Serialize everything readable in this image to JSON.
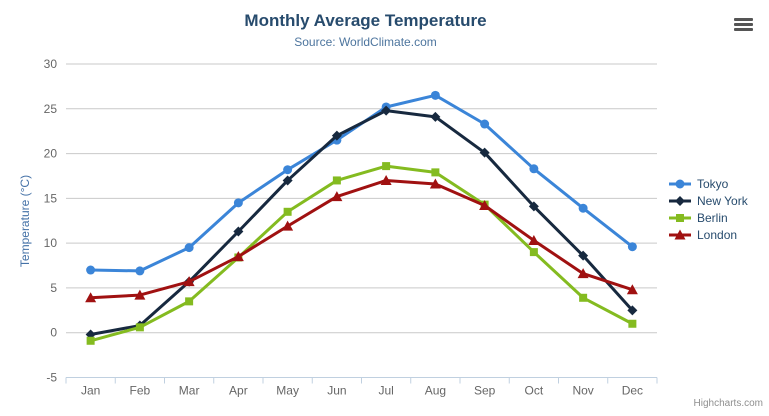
{
  "chart": {
    "title": "Monthly Average Temperature",
    "subtitle": "Source: WorldClimate.com",
    "credits": "Highcharts.com",
    "export_menu_icon": "hamburger-menu-icon",
    "colors": {
      "title": "#274b6d",
      "subtitle": "#4d759e",
      "y_axis_title": "#4572a7",
      "tick_label": "#666666",
      "gridline": "#c9c9c9",
      "axis_line": "#c0d0e0",
      "legend_text": "#274b6d",
      "credits_text": "#8f8f8f"
    }
  },
  "chart_data": {
    "type": "line",
    "title": "Monthly Average Temperature",
    "subtitle": "Source: WorldClimate.com",
    "xlabel": "",
    "ylabel": "Temperature (°C)",
    "categories": [
      "Jan",
      "Feb",
      "Mar",
      "Apr",
      "May",
      "Jun",
      "Jul",
      "Aug",
      "Sep",
      "Oct",
      "Nov",
      "Dec"
    ],
    "ylim": [
      -5,
      30
    ],
    "yticks": [
      -5,
      0,
      5,
      10,
      15,
      20,
      25,
      30
    ],
    "grid": "horizontal",
    "legend_position": "right",
    "series": [
      {
        "name": "Tokyo",
        "color": "#3b85d8",
        "marker": "circle",
        "values": [
          7.0,
          6.9,
          9.5,
          14.5,
          18.2,
          21.5,
          25.2,
          26.5,
          23.3,
          18.3,
          13.9,
          9.6
        ]
      },
      {
        "name": "New York",
        "color": "#17293f",
        "marker": "diamond",
        "values": [
          -0.2,
          0.8,
          5.7,
          11.3,
          17.0,
          22.0,
          24.8,
          24.1,
          20.1,
          14.1,
          8.6,
          2.5
        ]
      },
      {
        "name": "Berlin",
        "color": "#84bb20",
        "marker": "square",
        "values": [
          -0.9,
          0.6,
          3.5,
          8.4,
          13.5,
          17.0,
          18.6,
          17.9,
          14.3,
          9.0,
          3.9,
          1.0
        ]
      },
      {
        "name": "London",
        "color": "#a01111",
        "marker": "triangle",
        "values": [
          3.9,
          4.2,
          5.7,
          8.5,
          11.9,
          15.2,
          17.0,
          16.6,
          14.2,
          10.3,
          6.6,
          4.8
        ]
      }
    ]
  }
}
